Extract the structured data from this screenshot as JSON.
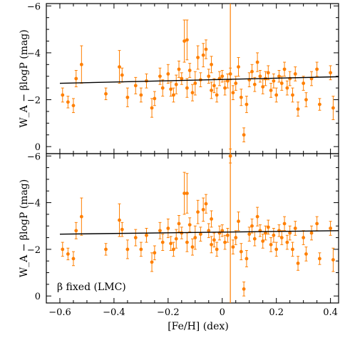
{
  "chart_data": [
    {
      "type": "scatter",
      "panel": "top",
      "xlabel": "[Fe/H] (dex)",
      "ylabel": "W_A − βlogP (mag)",
      "xlim": [
        -0.65,
        0.43
      ],
      "ylim": [
        0.3,
        -6.1
      ],
      "y_inverted": true,
      "x_ticks": [
        -0.6,
        -0.4,
        -0.2,
        0.0,
        0.2,
        0.4
      ],
      "y_ticks": [
        0,
        -2,
        -4,
        -6
      ],
      "y_tick_labels": [
        "0",
        "−2",
        "−4",
        "−6"
      ],
      "fit_line": {
        "x": [
          -0.6,
          0.43
        ],
        "y": [
          -2.7,
          -2.98
        ]
      },
      "vertical_line": {
        "x": 0.03
      },
      "annotation": "",
      "marker_color": "#ff7f00",
      "line_color": "#000000",
      "points": [
        {
          "x": -0.59,
          "y": -2.2,
          "err": 0.3
        },
        {
          "x": -0.57,
          "y": -1.9,
          "err": 0.25
        },
        {
          "x": -0.55,
          "y": -1.75,
          "err": 0.3
        },
        {
          "x": -0.54,
          "y": -2.9,
          "err": 0.35
        },
        {
          "x": -0.52,
          "y": -3.5,
          "err": 0.8
        },
        {
          "x": -0.43,
          "y": -2.25,
          "err": 0.25
        },
        {
          "x": -0.38,
          "y": -3.4,
          "err": 0.7
        },
        {
          "x": -0.37,
          "y": -3.05,
          "err": 0.3
        },
        {
          "x": -0.35,
          "y": -2.1,
          "err": 0.4
        },
        {
          "x": -0.32,
          "y": -2.6,
          "err": 0.35
        },
        {
          "x": -0.3,
          "y": -2.2,
          "err": 0.3
        },
        {
          "x": -0.28,
          "y": -2.8,
          "err": 0.3
        },
        {
          "x": -0.26,
          "y": -1.65,
          "err": 0.4
        },
        {
          "x": -0.25,
          "y": -2.05,
          "err": 0.3
        },
        {
          "x": -0.23,
          "y": -3.0,
          "err": 0.35
        },
        {
          "x": -0.22,
          "y": -2.5,
          "err": 0.35
        },
        {
          "x": -0.2,
          "y": -3.1,
          "err": 0.4
        },
        {
          "x": -0.19,
          "y": -2.45,
          "err": 0.3
        },
        {
          "x": -0.18,
          "y": -2.2,
          "err": 0.3
        },
        {
          "x": -0.17,
          "y": -2.65,
          "err": 0.4
        },
        {
          "x": -0.16,
          "y": -3.3,
          "err": 0.35
        },
        {
          "x": -0.15,
          "y": -2.9,
          "err": 0.25
        },
        {
          "x": -0.14,
          "y": -4.5,
          "err": 0.9
        },
        {
          "x": -0.13,
          "y": -4.55,
          "err": 0.85
        },
        {
          "x": -0.13,
          "y": -2.5,
          "err": 0.4
        },
        {
          "x": -0.12,
          "y": -3.25,
          "err": 0.3
        },
        {
          "x": -0.11,
          "y": -2.3,
          "err": 0.35
        },
        {
          "x": -0.1,
          "y": -2.7,
          "err": 0.5
        },
        {
          "x": -0.09,
          "y": -3.8,
          "err": 0.5
        },
        {
          "x": -0.08,
          "y": -2.85,
          "err": 0.3
        },
        {
          "x": -0.07,
          "y": -3.9,
          "err": 0.5
        },
        {
          "x": -0.06,
          "y": -4.15,
          "err": 0.4
        },
        {
          "x": -0.05,
          "y": -3.0,
          "err": 0.3
        },
        {
          "x": -0.04,
          "y": -2.4,
          "err": 0.35
        },
        {
          "x": -0.04,
          "y": -3.5,
          "err": 0.35
        },
        {
          "x": -0.03,
          "y": -2.6,
          "err": 0.3
        },
        {
          "x": -0.02,
          "y": -2.2,
          "err": 0.3
        },
        {
          "x": -0.01,
          "y": -2.9,
          "err": 0.3
        },
        {
          "x": 0.0,
          "y": -3.0,
          "err": 0.25
        },
        {
          "x": 0.01,
          "y": -2.5,
          "err": 0.3
        },
        {
          "x": 0.02,
          "y": -2.8,
          "err": 0.3
        },
        {
          "x": 0.03,
          "y": -3.1,
          "err": 0.25
        },
        {
          "x": 0.04,
          "y": -2.3,
          "err": 0.3
        },
        {
          "x": 0.05,
          "y": -2.7,
          "err": 0.3
        },
        {
          "x": 0.06,
          "y": -3.4,
          "err": 0.4
        },
        {
          "x": 0.07,
          "y": -2.1,
          "err": 0.35
        },
        {
          "x": 0.08,
          "y": -0.5,
          "err": 0.3
        },
        {
          "x": 0.09,
          "y": -1.8,
          "err": 0.35
        },
        {
          "x": 0.1,
          "y": -2.85,
          "err": 0.3
        },
        {
          "x": 0.11,
          "y": -3.2,
          "err": 0.3
        },
        {
          "x": 0.12,
          "y": -2.65,
          "err": 0.3
        },
        {
          "x": 0.13,
          "y": -3.6,
          "err": 0.4
        },
        {
          "x": 0.14,
          "y": -3.0,
          "err": 0.25
        },
        {
          "x": 0.15,
          "y": -2.55,
          "err": 0.3
        },
        {
          "x": 0.16,
          "y": -2.9,
          "err": 0.3
        },
        {
          "x": 0.17,
          "y": -3.15,
          "err": 0.3
        },
        {
          "x": 0.18,
          "y": -2.4,
          "err": 0.3
        },
        {
          "x": 0.19,
          "y": -2.8,
          "err": 0.3
        },
        {
          "x": 0.2,
          "y": -2.2,
          "err": 0.3
        },
        {
          "x": 0.21,
          "y": -3.0,
          "err": 0.25
        },
        {
          "x": 0.22,
          "y": -2.7,
          "err": 0.3
        },
        {
          "x": 0.23,
          "y": -3.3,
          "err": 0.3
        },
        {
          "x": 0.24,
          "y": -2.5,
          "err": 0.3
        },
        {
          "x": 0.25,
          "y": -2.9,
          "err": 0.3
        },
        {
          "x": 0.26,
          "y": -2.2,
          "err": 0.3
        },
        {
          "x": 0.27,
          "y": -3.1,
          "err": 0.3
        },
        {
          "x": 0.28,
          "y": -1.6,
          "err": 0.3
        },
        {
          "x": 0.3,
          "y": -2.7,
          "err": 0.3
        },
        {
          "x": 0.31,
          "y": -2.0,
          "err": 0.3
        },
        {
          "x": 0.33,
          "y": -2.9,
          "err": 0.3
        },
        {
          "x": 0.35,
          "y": -3.3,
          "err": 0.3
        },
        {
          "x": 0.36,
          "y": -1.8,
          "err": 0.25
        },
        {
          "x": 0.4,
          "y": -3.15,
          "err": 0.3
        },
        {
          "x": 0.41,
          "y": -1.65,
          "err": 0.5
        }
      ]
    },
    {
      "type": "scatter",
      "panel": "bottom",
      "xlabel": "[Fe/H] (dex)",
      "ylabel": "W_A − βlogP (mag)",
      "xlim": [
        -0.65,
        0.43
      ],
      "ylim": [
        0.3,
        -6.1
      ],
      "y_inverted": true,
      "x_ticks": [
        -0.6,
        -0.4,
        -0.2,
        0.0,
        0.2,
        0.4
      ],
      "y_ticks": [
        0,
        -2,
        -4,
        -6
      ],
      "y_tick_labels": [
        "0",
        "−2",
        "−4",
        "−6"
      ],
      "fit_line": {
        "x": [
          -0.6,
          0.43
        ],
        "y": [
          -2.65,
          -2.8
        ]
      },
      "vertical_line": {
        "x": 0.03
      },
      "annotation": "β fixed (LMC)",
      "marker_color": "#ff7f00",
      "line_color": "#000000",
      "points": [
        {
          "x": -0.59,
          "y": -2.0,
          "err": 0.3
        },
        {
          "x": -0.57,
          "y": -1.8,
          "err": 0.25
        },
        {
          "x": -0.55,
          "y": -1.6,
          "err": 0.3
        },
        {
          "x": -0.54,
          "y": -2.8,
          "err": 0.35
        },
        {
          "x": -0.52,
          "y": -3.4,
          "err": 0.8
        },
        {
          "x": -0.43,
          "y": -2.0,
          "err": 0.25
        },
        {
          "x": -0.38,
          "y": -3.25,
          "err": 0.7
        },
        {
          "x": -0.37,
          "y": -2.85,
          "err": 0.3
        },
        {
          "x": -0.35,
          "y": -2.0,
          "err": 0.4
        },
        {
          "x": -0.32,
          "y": -2.5,
          "err": 0.35
        },
        {
          "x": -0.3,
          "y": -2.0,
          "err": 0.3
        },
        {
          "x": -0.28,
          "y": -2.6,
          "err": 0.3
        },
        {
          "x": -0.26,
          "y": -1.45,
          "err": 0.4
        },
        {
          "x": -0.25,
          "y": -1.85,
          "err": 0.3
        },
        {
          "x": -0.23,
          "y": -2.8,
          "err": 0.35
        },
        {
          "x": -0.22,
          "y": -2.3,
          "err": 0.35
        },
        {
          "x": -0.2,
          "y": -2.9,
          "err": 0.4
        },
        {
          "x": -0.19,
          "y": -2.25,
          "err": 0.3
        },
        {
          "x": -0.18,
          "y": -2.0,
          "err": 0.3
        },
        {
          "x": -0.17,
          "y": -2.45,
          "err": 0.4
        },
        {
          "x": -0.16,
          "y": -3.1,
          "err": 0.35
        },
        {
          "x": -0.15,
          "y": -2.7,
          "err": 0.25
        },
        {
          "x": -0.14,
          "y": -4.4,
          "err": 0.9
        },
        {
          "x": -0.13,
          "y": -4.4,
          "err": 0.85
        },
        {
          "x": -0.13,
          "y": -2.3,
          "err": 0.4
        },
        {
          "x": -0.12,
          "y": -3.05,
          "err": 0.3
        },
        {
          "x": -0.11,
          "y": -2.1,
          "err": 0.35
        },
        {
          "x": -0.1,
          "y": -2.5,
          "err": 0.5
        },
        {
          "x": -0.09,
          "y": -3.6,
          "err": 0.5
        },
        {
          "x": -0.08,
          "y": -2.65,
          "err": 0.3
        },
        {
          "x": -0.07,
          "y": -3.7,
          "err": 0.5
        },
        {
          "x": -0.06,
          "y": -3.95,
          "err": 0.4
        },
        {
          "x": -0.05,
          "y": -2.8,
          "err": 0.3
        },
        {
          "x": -0.04,
          "y": -2.2,
          "err": 0.35
        },
        {
          "x": -0.04,
          "y": -3.3,
          "err": 0.35
        },
        {
          "x": -0.03,
          "y": -2.4,
          "err": 0.3
        },
        {
          "x": -0.02,
          "y": -2.0,
          "err": 0.3
        },
        {
          "x": -0.01,
          "y": -2.7,
          "err": 0.3
        },
        {
          "x": 0.0,
          "y": -2.8,
          "err": 0.25
        },
        {
          "x": 0.01,
          "y": -2.3,
          "err": 0.3
        },
        {
          "x": 0.02,
          "y": -2.6,
          "err": 0.3
        },
        {
          "x": 0.03,
          "y": -6.0,
          "err": 0.3
        },
        {
          "x": 0.04,
          "y": -2.1,
          "err": 0.3
        },
        {
          "x": 0.05,
          "y": -2.5,
          "err": 0.3
        },
        {
          "x": 0.06,
          "y": -3.2,
          "err": 0.4
        },
        {
          "x": 0.07,
          "y": -1.9,
          "err": 0.35
        },
        {
          "x": 0.08,
          "y": -0.3,
          "err": 0.3
        },
        {
          "x": 0.09,
          "y": -1.6,
          "err": 0.35
        },
        {
          "x": 0.1,
          "y": -2.65,
          "err": 0.3
        },
        {
          "x": 0.11,
          "y": -3.0,
          "err": 0.3
        },
        {
          "x": 0.12,
          "y": -2.45,
          "err": 0.3
        },
        {
          "x": 0.13,
          "y": -3.4,
          "err": 0.4
        },
        {
          "x": 0.14,
          "y": -2.8,
          "err": 0.25
        },
        {
          "x": 0.15,
          "y": -2.35,
          "err": 0.3
        },
        {
          "x": 0.16,
          "y": -2.7,
          "err": 0.3
        },
        {
          "x": 0.17,
          "y": -2.95,
          "err": 0.3
        },
        {
          "x": 0.18,
          "y": -2.2,
          "err": 0.3
        },
        {
          "x": 0.19,
          "y": -2.6,
          "err": 0.3
        },
        {
          "x": 0.2,
          "y": -2.0,
          "err": 0.3
        },
        {
          "x": 0.21,
          "y": -2.8,
          "err": 0.25
        },
        {
          "x": 0.22,
          "y": -2.5,
          "err": 0.3
        },
        {
          "x": 0.23,
          "y": -3.1,
          "err": 0.3
        },
        {
          "x": 0.24,
          "y": -2.3,
          "err": 0.3
        },
        {
          "x": 0.25,
          "y": -2.7,
          "err": 0.3
        },
        {
          "x": 0.26,
          "y": -2.0,
          "err": 0.3
        },
        {
          "x": 0.27,
          "y": -2.9,
          "err": 0.3
        },
        {
          "x": 0.28,
          "y": -1.4,
          "err": 0.3
        },
        {
          "x": 0.3,
          "y": -2.5,
          "err": 0.3
        },
        {
          "x": 0.31,
          "y": -1.8,
          "err": 0.3
        },
        {
          "x": 0.33,
          "y": -2.7,
          "err": 0.3
        },
        {
          "x": 0.35,
          "y": -3.1,
          "err": 0.3
        },
        {
          "x": 0.36,
          "y": -1.6,
          "err": 0.25
        },
        {
          "x": 0.4,
          "y": -2.9,
          "err": 0.3
        },
        {
          "x": 0.41,
          "y": -1.55,
          "err": 0.5
        }
      ]
    }
  ]
}
